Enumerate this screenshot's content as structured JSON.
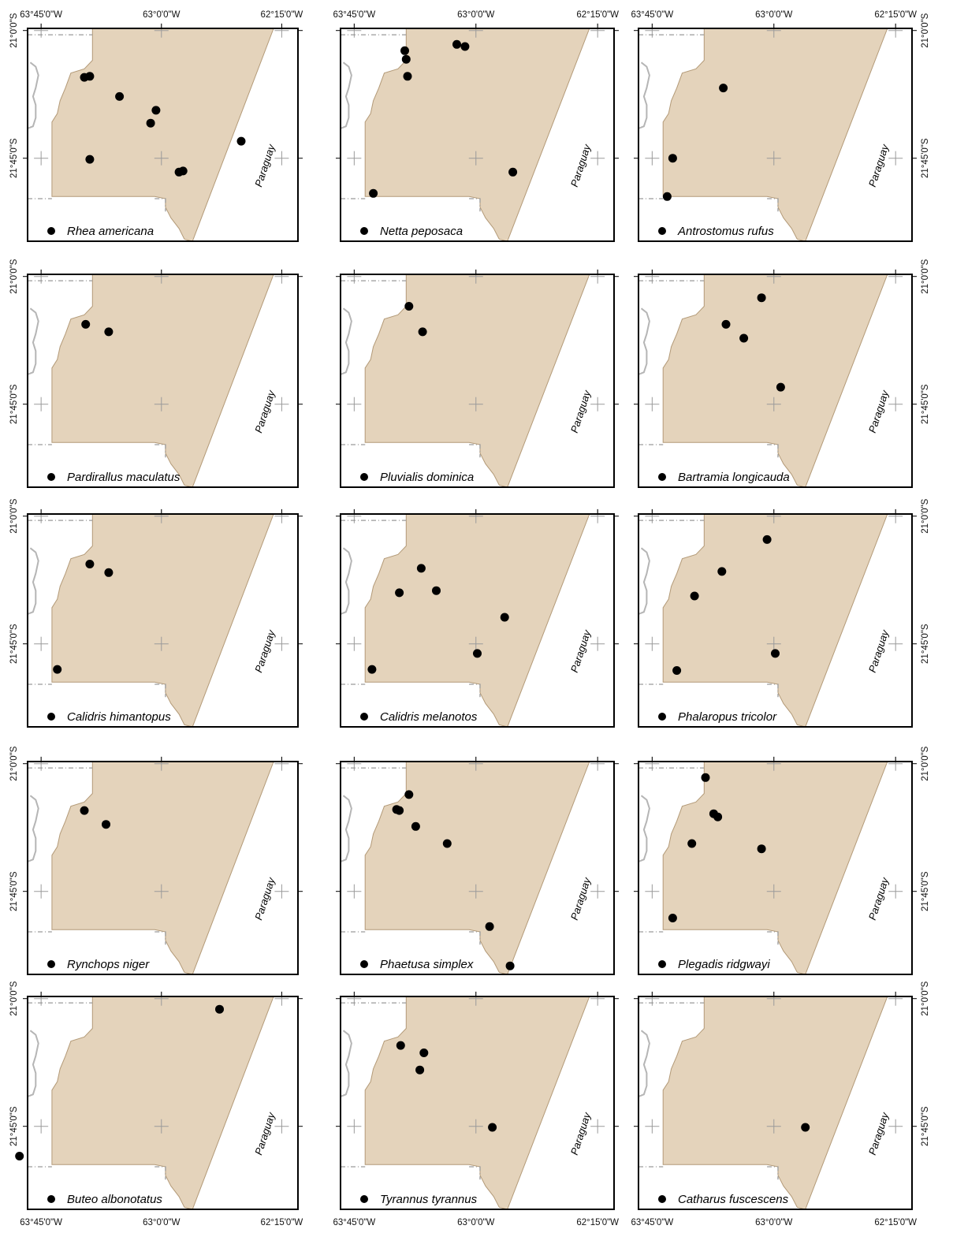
{
  "map": {
    "lon_labels": [
      "63°45'0\"W",
      "63°0'0\"W",
      "62°15'0\"W"
    ],
    "lat_labels": [
      "21°0'0\"S",
      "21°45'0\"S"
    ],
    "country_label": "Paraguay",
    "colors": {
      "study_area_fill": "#e4d3bb",
      "study_area_stroke": "#b39a78",
      "frame": "#000000",
      "border_line": "#9a9a9a",
      "river": "#b5b5b5",
      "record_dot": "#000000",
      "graticule": "#9a9a9a"
    },
    "panels": [
      {
        "species": "Rhea americana",
        "records": [
          [
            0.21,
            0.23
          ],
          [
            0.23,
            0.225
          ],
          [
            0.34,
            0.32
          ],
          [
            0.475,
            0.385
          ],
          [
            0.455,
            0.445
          ],
          [
            0.23,
            0.615
          ],
          [
            0.56,
            0.675
          ],
          [
            0.575,
            0.67
          ],
          [
            0.79,
            0.53
          ]
        ]
      },
      {
        "species": "Netta peposaca",
        "records": [
          [
            0.245,
            0.225
          ],
          [
            0.235,
            0.105
          ],
          [
            0.24,
            0.145
          ],
          [
            0.425,
            0.075
          ],
          [
            0.455,
            0.085
          ],
          [
            0.63,
            0.675
          ],
          [
            0.12,
            0.775
          ]
        ]
      },
      {
        "species": "Antrostomus rufus",
        "records": [
          [
            0.31,
            0.28
          ],
          [
            0.125,
            0.61
          ],
          [
            0.105,
            0.79
          ]
        ]
      },
      {
        "species": "Pardirallus maculatus",
        "records": [
          [
            0.215,
            0.235
          ],
          [
            0.3,
            0.27
          ]
        ]
      },
      {
        "species": "Pluvialis dominica",
        "records": [
          [
            0.25,
            0.15
          ],
          [
            0.3,
            0.27
          ]
        ]
      },
      {
        "species": "Bartramia longicauda",
        "records": [
          [
            0.45,
            0.11
          ],
          [
            0.32,
            0.235
          ],
          [
            0.385,
            0.3
          ],
          [
            0.52,
            0.53
          ]
        ]
      },
      {
        "species": "Calidris himantopus",
        "records": [
          [
            0.23,
            0.235
          ],
          [
            0.3,
            0.275
          ],
          [
            0.11,
            0.73
          ]
        ]
      },
      {
        "species": "Calidris melanotos",
        "records": [
          [
            0.295,
            0.255
          ],
          [
            0.215,
            0.37
          ],
          [
            0.35,
            0.36
          ],
          [
            0.6,
            0.485
          ],
          [
            0.5,
            0.655
          ],
          [
            0.115,
            0.73
          ]
        ]
      },
      {
        "species": "Phalaropus tricolor",
        "records": [
          [
            0.47,
            0.12
          ],
          [
            0.305,
            0.27
          ],
          [
            0.205,
            0.385
          ],
          [
            0.5,
            0.655
          ],
          [
            0.14,
            0.735
          ]
        ]
      },
      {
        "species": "Rynchops niger",
        "records": [
          [
            0.21,
            0.23
          ],
          [
            0.29,
            0.295
          ]
        ]
      },
      {
        "species": "Phaetusa simplex",
        "records": [
          [
            0.25,
            0.155
          ],
          [
            0.205,
            0.225
          ],
          [
            0.215,
            0.23
          ],
          [
            0.275,
            0.305
          ],
          [
            0.39,
            0.385
          ],
          [
            0.545,
            0.775
          ],
          [
            0.62,
            0.96
          ]
        ]
      },
      {
        "species": "Plegadis ridgwayi",
        "records": [
          [
            0.245,
            0.075
          ],
          [
            0.275,
            0.245
          ],
          [
            0.29,
            0.26
          ],
          [
            0.195,
            0.385
          ],
          [
            0.45,
            0.41
          ],
          [
            0.125,
            0.735
          ]
        ]
      },
      {
        "species": "Buteo albonotatus",
        "records": [
          [
            0.71,
            0.06
          ],
          [
            -0.03,
            0.75
          ]
        ]
      },
      {
        "species": "Tyrannus tyrannus",
        "records": [
          [
            0.22,
            0.23
          ],
          [
            0.305,
            0.265
          ],
          [
            0.29,
            0.345
          ],
          [
            0.555,
            0.615
          ]
        ]
      },
      {
        "species": "Catharus fuscescens",
        "records": [
          [
            0.61,
            0.615
          ]
        ]
      }
    ]
  }
}
